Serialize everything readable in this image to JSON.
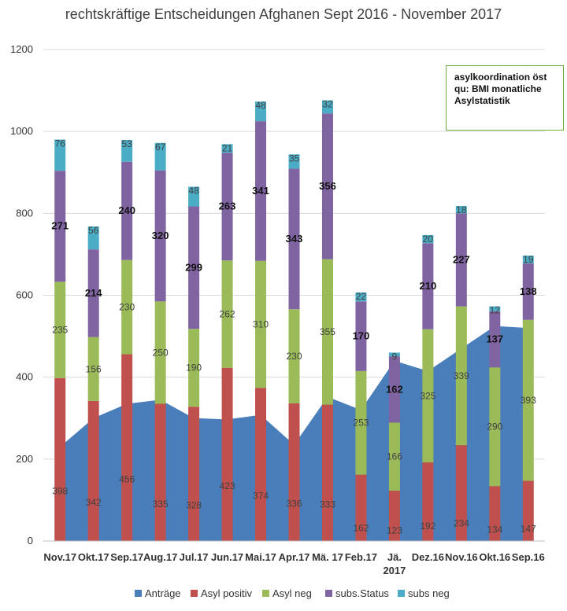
{
  "chart_data": {
    "type": "bar",
    "stacked": true,
    "title": "rechtskräftige Entscheidungen Afghanen Sept 2016 - November 2017",
    "categories": [
      "Nov.17",
      "Okt.17",
      "Sep.17",
      "Aug.17",
      "Jul.17",
      "Jun.17",
      "Mai.17",
      "Apr.17",
      "Mä. 17",
      "Feb.17",
      "Jä. 2017",
      "Dez.16",
      "Nov.16",
      "Okt.16",
      "Sep.16"
    ],
    "category_lines": [
      [
        "Nov.17"
      ],
      [
        "Okt.17"
      ],
      [
        "Sep.17"
      ],
      [
        "Aug.17"
      ],
      [
        "Jul.17"
      ],
      [
        "Jun.17"
      ],
      [
        "Mai.17"
      ],
      [
        "Apr.17"
      ],
      [
        "Mä. 17"
      ],
      [
        "Feb.17"
      ],
      [
        "Jä.",
        "2017"
      ],
      [
        "Dez.16"
      ],
      [
        "Nov.16"
      ],
      [
        "Okt.16"
      ],
      [
        "Sep.16"
      ]
    ],
    "ylim": [
      0,
      1200
    ],
    "yticks": [
      0,
      200,
      400,
      600,
      800,
      1000,
      1200
    ],
    "grid": true,
    "legend_position": "bottom",
    "area_series": {
      "name": "Anträge",
      "color": "#4a7ebb",
      "values": [
        230,
        300,
        335,
        345,
        300,
        297,
        308,
        235,
        352,
        320,
        440,
        415,
        470,
        525,
        520
      ]
    },
    "series": [
      {
        "name": "Asyl positiv",
        "color": "#c0504d",
        "values": [
          398,
          342,
          456,
          335,
          328,
          423,
          374,
          336,
          333,
          162,
          123,
          192,
          234,
          134,
          147
        ]
      },
      {
        "name": "Asyl neg",
        "color": "#9bbb59",
        "values": [
          235,
          156,
          230,
          250,
          190,
          262,
          310,
          230,
          355,
          253,
          166,
          325,
          339,
          290,
          393
        ]
      },
      {
        "name": "subs.Status",
        "color": "#8064a2",
        "values": [
          271,
          214,
          240,
          320,
          299,
          263,
          341,
          343,
          356,
          170,
          162,
          210,
          227,
          137,
          138
        ]
      },
      {
        "name": "subs neg",
        "color": "#4bacc6",
        "values": [
          76,
          56,
          53,
          67,
          48,
          21,
          48,
          35,
          32,
          22,
          9,
          20,
          18,
          12,
          19
        ]
      }
    ]
  },
  "annotation": {
    "lines": [
      "asylkoordination öst",
      "qu: BMI monatliche",
      "Asylstatistik"
    ]
  }
}
